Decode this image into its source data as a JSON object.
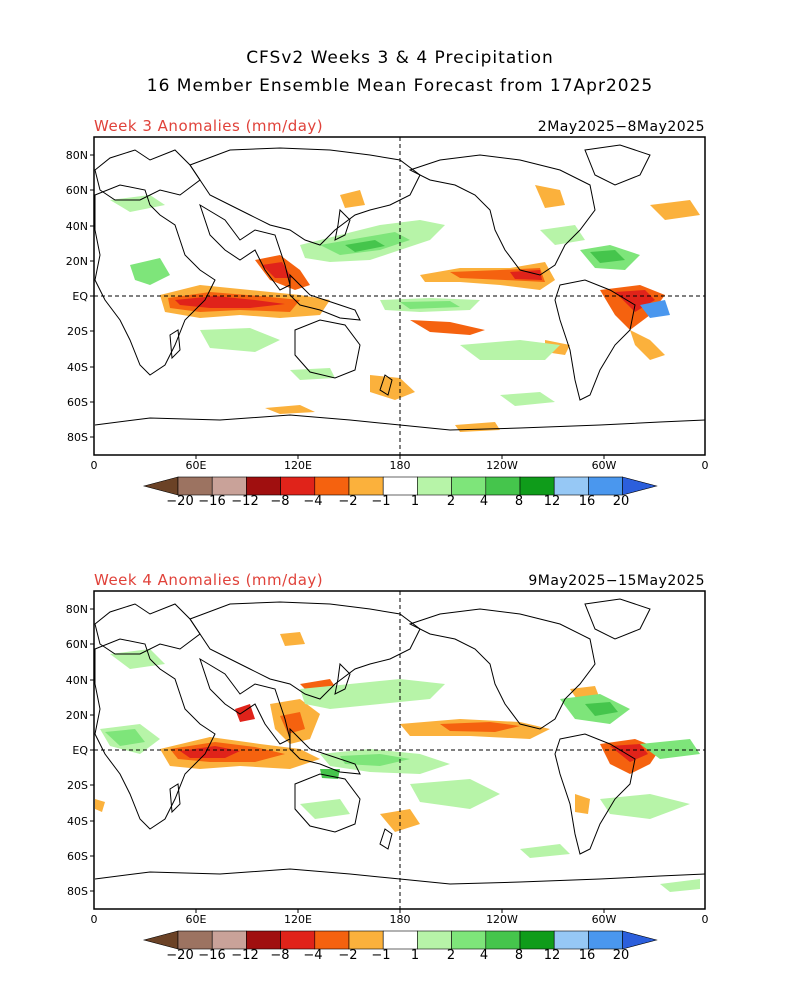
{
  "title": {
    "line1": "CFSv2 Weeks 3 & 4 Precipitation",
    "line2": "16 Member Ensemble Mean Forecast from 17Apr2025"
  },
  "panels": [
    {
      "label": "Week 3 Anomalies (mm/day)",
      "dates": "2May2025−8May2025"
    },
    {
      "label": "Week 4 Anomalies (mm/day)",
      "dates": "9May2025−15May2025"
    }
  ],
  "lat_labels": [
    "80N",
    "60N",
    "40N",
    "20N",
    "EQ",
    "20S",
    "40S",
    "60S",
    "80S"
  ],
  "lon_labels": [
    "0",
    "60E",
    "120E",
    "180",
    "120W",
    "60W",
    "0"
  ],
  "colorbar": {
    "labels": [
      "−20",
      "−16",
      "−12",
      "−8",
      "−4",
      "−2",
      "−1",
      "1",
      "2",
      "4",
      "8",
      "12",
      "16",
      "20"
    ],
    "colors": {
      "dry_below20": "#6b4226",
      "dry_16_20": "#9c7361",
      "dry_12_16": "#c9a299",
      "dry_8_12": "#a00f0f",
      "dry_4_8": "#e0231a",
      "dry_2_4": "#f5620f",
      "dry_1_2": "#fbb13c",
      "neutral": "#ffffff",
      "wet_1_2": "#b7f4a8",
      "wet_2_4": "#7ee57a",
      "wet_4_8": "#45c54c",
      "wet_8_12": "#0f9c1a",
      "wet_12_16": "#96c8f5",
      "wet_16_20": "#4a97ee",
      "wet_above20": "#2c5fdc"
    }
  }
}
